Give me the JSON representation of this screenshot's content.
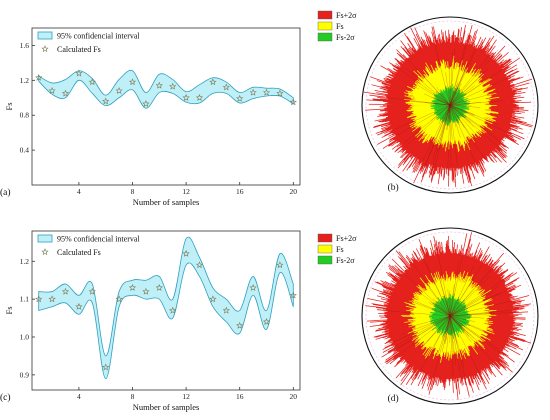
{
  "chart_data": [
    {
      "panel": "(a)",
      "type": "line",
      "xlabel": "Number of samples",
      "ylabel": "Fs",
      "xlim": [
        0.5,
        20.5
      ],
      "ylim": [
        0,
        1.8
      ],
      "xticks": [
        "4",
        "8",
        "12",
        "16",
        "20"
      ],
      "yticks": [
        "0.4",
        "0.8",
        "1.2",
        "1.6"
      ],
      "legend": {
        "ci": "95% confidencial interval",
        "calc": "Calculated Fs"
      },
      "x": [
        1,
        2,
        3,
        4,
        5,
        6,
        7,
        8,
        9,
        10,
        11,
        12,
        13,
        14,
        15,
        16,
        17,
        18,
        19,
        20
      ],
      "values": [
        1.23,
        1.08,
        1.05,
        1.28,
        1.18,
        0.96,
        1.08,
        1.18,
        0.93,
        1.14,
        1.13,
        1.0,
        1.0,
        1.18,
        1.12,
        0.99,
        1.06,
        1.06,
        1.05,
        0.95
      ],
      "ci_upper": [
        1.25,
        1.17,
        1.21,
        1.31,
        1.22,
        1.03,
        1.21,
        1.31,
        1.06,
        1.27,
        1.21,
        1.07,
        1.15,
        1.23,
        1.18,
        1.06,
        1.12,
        1.11,
        1.1,
        1.0
      ],
      "ci_lower": [
        1.19,
        1.04,
        1.0,
        1.2,
        1.05,
        0.91,
        1.0,
        1.09,
        0.88,
        1.06,
        1.05,
        0.95,
        0.94,
        1.05,
        1.05,
        0.94,
        0.99,
        1.02,
        1.02,
        0.93
      ]
    },
    {
      "panel": "(b)",
      "type": "radial",
      "legend": [
        "Fs+2σ",
        "Fs",
        "Fs-2σ"
      ],
      "colors": [
        "#e5211d",
        "#ffff00",
        "#22cc22"
      ],
      "radii": [
        1.0,
        0.51,
        0.2
      ],
      "n_rays": 720,
      "seed": 3
    },
    {
      "panel": "(c)",
      "type": "line",
      "xlabel": "Number of samples",
      "ylabel": "Fs",
      "xlim": [
        0.5,
        20.5
      ],
      "ylim": [
        0.86,
        1.28
      ],
      "xticks": [
        "4",
        "8",
        "12",
        "16",
        "20"
      ],
      "yticks": [
        "0.9",
        "1.0",
        "1.1",
        "1.2"
      ],
      "legend": {
        "ci": "95% confidencial interval",
        "calc": "Calculated Fs"
      },
      "x": [
        1,
        2,
        3,
        4,
        5,
        6,
        7,
        8,
        9,
        10,
        11,
        12,
        13,
        14,
        15,
        16,
        17,
        18,
        19,
        20
      ],
      "values": [
        1.1,
        1.1,
        1.12,
        1.08,
        1.12,
        0.92,
        1.1,
        1.13,
        1.12,
        1.13,
        1.07,
        1.22,
        1.19,
        1.1,
        1.07,
        1.03,
        1.13,
        1.04,
        1.19,
        1.11
      ],
      "ci_upper": [
        1.12,
        1.12,
        1.14,
        1.11,
        1.14,
        0.95,
        1.12,
        1.15,
        1.15,
        1.16,
        1.1,
        1.26,
        1.21,
        1.13,
        1.1,
        1.07,
        1.16,
        1.07,
        1.22,
        1.14
      ],
      "ci_lower": [
        1.07,
        1.08,
        1.09,
        1.06,
        1.09,
        0.89,
        1.08,
        1.11,
        1.1,
        1.1,
        1.05,
        1.19,
        1.16,
        1.08,
        1.04,
        1.01,
        1.11,
        1.02,
        1.17,
        1.08
      ]
    },
    {
      "panel": "(d)",
      "type": "radial",
      "legend": [
        "Fs+2σ",
        "Fs",
        "Fs-2σ"
      ],
      "colors": [
        "#e5211d",
        "#ffff00",
        "#22cc22"
      ],
      "radii": [
        1.0,
        0.5,
        0.22
      ],
      "n_rays": 720,
      "seed": 7
    }
  ]
}
